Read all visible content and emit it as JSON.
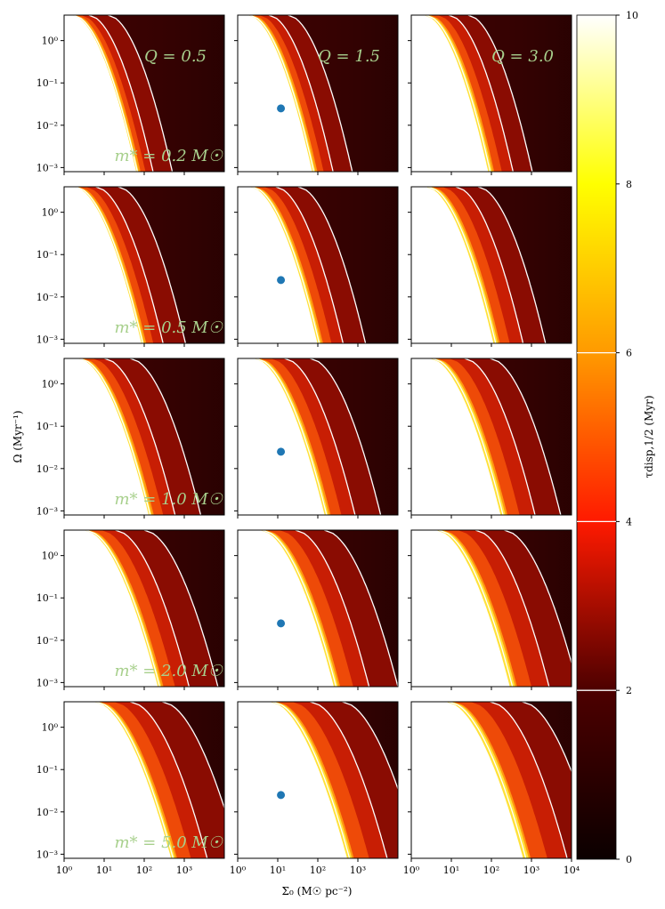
{
  "chart_data": {
    "type": "heatmap",
    "grid": {
      "rows": 5,
      "cols": 3
    },
    "x_axis": {
      "label": "Σ₀ (M☉ pc⁻²)",
      "scale": "log",
      "range": [
        1,
        10000
      ],
      "ticks": [
        1,
        10,
        100,
        1000
      ],
      "tick_labels": [
        "10⁰",
        "10¹",
        "10²",
        "10³"
      ],
      "last_column_extra_tick": {
        "value": 10000,
        "label": "10⁴"
      }
    },
    "y_axis": {
      "label": "Ω (Myr⁻¹)",
      "scale": "log",
      "range": [
        0.0008,
        4
      ],
      "ticks": [
        0.001,
        0.01,
        0.1,
        1
      ],
      "tick_labels": [
        "10⁻³",
        "10⁻²",
        "10⁻¹",
        "10⁰"
      ]
    },
    "colorbar": {
      "label": "τdisp,1/2 (Myr)",
      "range": [
        0,
        10
      ],
      "ticks": [
        0,
        2,
        4,
        6,
        8,
        10
      ],
      "tick_labels": [
        "0",
        "2",
        "4",
        "6",
        "8",
        "10"
      ],
      "contour_levels": [
        2,
        4,
        6
      ],
      "colormap": "hot"
    },
    "columns": [
      {
        "Q": 0.5,
        "label": "Q = 0.5"
      },
      {
        "Q": 1.5,
        "label": "Q = 1.5"
      },
      {
        "Q": 3.0,
        "label": "Q = 3.0"
      }
    ],
    "rows": [
      {
        "m_star": 0.2,
        "label": "m* = 0.2 M☉"
      },
      {
        "m_star": 0.5,
        "label": "m* = 0.5 M☉"
      },
      {
        "m_star": 1.0,
        "label": "m* = 1.0 M☉"
      },
      {
        "m_star": 2.0,
        "label": "m* = 2.0 M☉"
      },
      {
        "m_star": 5.0,
        "label": "m* = 5.0 M☉"
      }
    ],
    "marker": {
      "column": 1,
      "sigma0": 12,
      "omega": 0.025,
      "color": "#1f77b4"
    }
  }
}
